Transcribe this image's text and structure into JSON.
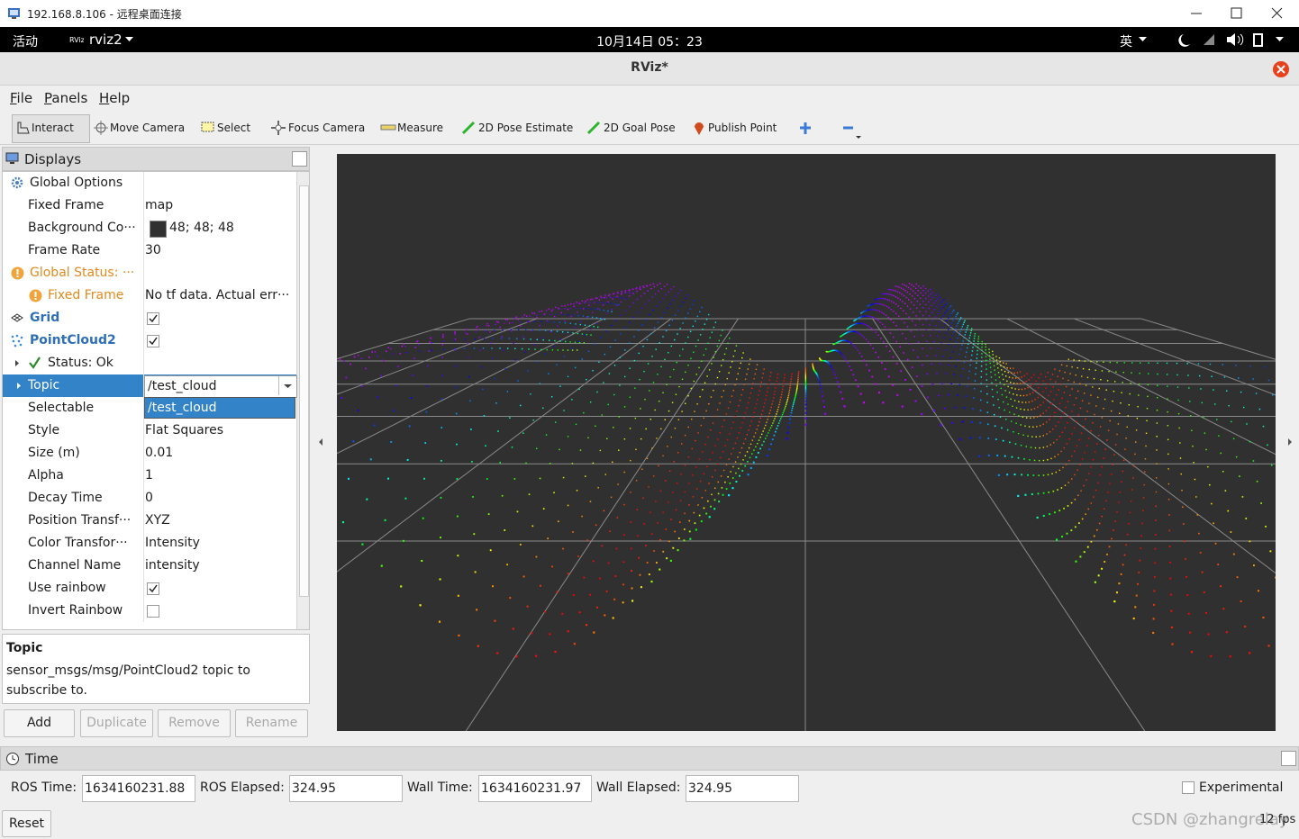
{
  "window_title": "192.168.8.106 - 远程桌面连接",
  "topbar": {
    "activities": "活动",
    "app": "rviz2",
    "clock": "10月14日  05：23",
    "ime": "英"
  },
  "app_title": "RViz*",
  "menu": [
    "File",
    "Panels",
    "Help"
  ],
  "toolbar": [
    "Interact",
    "Move Camera",
    "Select",
    "Focus Camera",
    "Measure",
    "2D Pose Estimate",
    "2D Goal Pose",
    "Publish Point"
  ],
  "displays": {
    "title": "Displays",
    "rows": [
      {
        "name": "Global Options"
      },
      {
        "name": "Fixed Frame",
        "value": "map"
      },
      {
        "name": "Background Co···",
        "value": "48; 48; 48"
      },
      {
        "name": "Frame Rate",
        "value": "30"
      },
      {
        "name": "Global Status: ···"
      },
      {
        "name": "Fixed Frame",
        "value": "No tf data.  Actual err···"
      },
      {
        "name": "Grid",
        "checked": true
      },
      {
        "name": "PointCloud2",
        "checked": true
      },
      {
        "name": "Status: Ok"
      },
      {
        "name": "Topic",
        "value": "/test_cloud"
      },
      {
        "name": "Selectable"
      },
      {
        "name": "Style",
        "value": "Flat Squares"
      },
      {
        "name": "Size (m)",
        "value": "0.01"
      },
      {
        "name": "Alpha",
        "value": "1"
      },
      {
        "name": "Decay Time",
        "value": "0"
      },
      {
        "name": "Position Transf···",
        "value": "XYZ"
      },
      {
        "name": "Color Transfor···",
        "value": "Intensity"
      },
      {
        "name": "Channel Name",
        "value": "intensity"
      },
      {
        "name": "Use rainbow",
        "checked": true
      },
      {
        "name": "Invert Rainbow",
        "checked": false
      }
    ],
    "topic_options": [
      "/test_cloud"
    ]
  },
  "description": {
    "title": "Topic",
    "text": "sensor_msgs/msg/PointCloud2 topic to subscribe to."
  },
  "buttons": [
    "Add",
    "Duplicate",
    "Remove",
    "Rename"
  ],
  "time": {
    "title": "Time",
    "fields": [
      {
        "label": "ROS Time:",
        "value": "1634160231.88"
      },
      {
        "label": "ROS Elapsed:",
        "value": "324.95"
      },
      {
        "label": "Wall Time:",
        "value": "1634160231.97"
      },
      {
        "label": "Wall Elapsed:",
        "value": "324.95"
      }
    ],
    "experimental": "Experimental",
    "reset": "Reset",
    "fps": "12 fps"
  },
  "watermark": "CSDN @zhangrelay"
}
